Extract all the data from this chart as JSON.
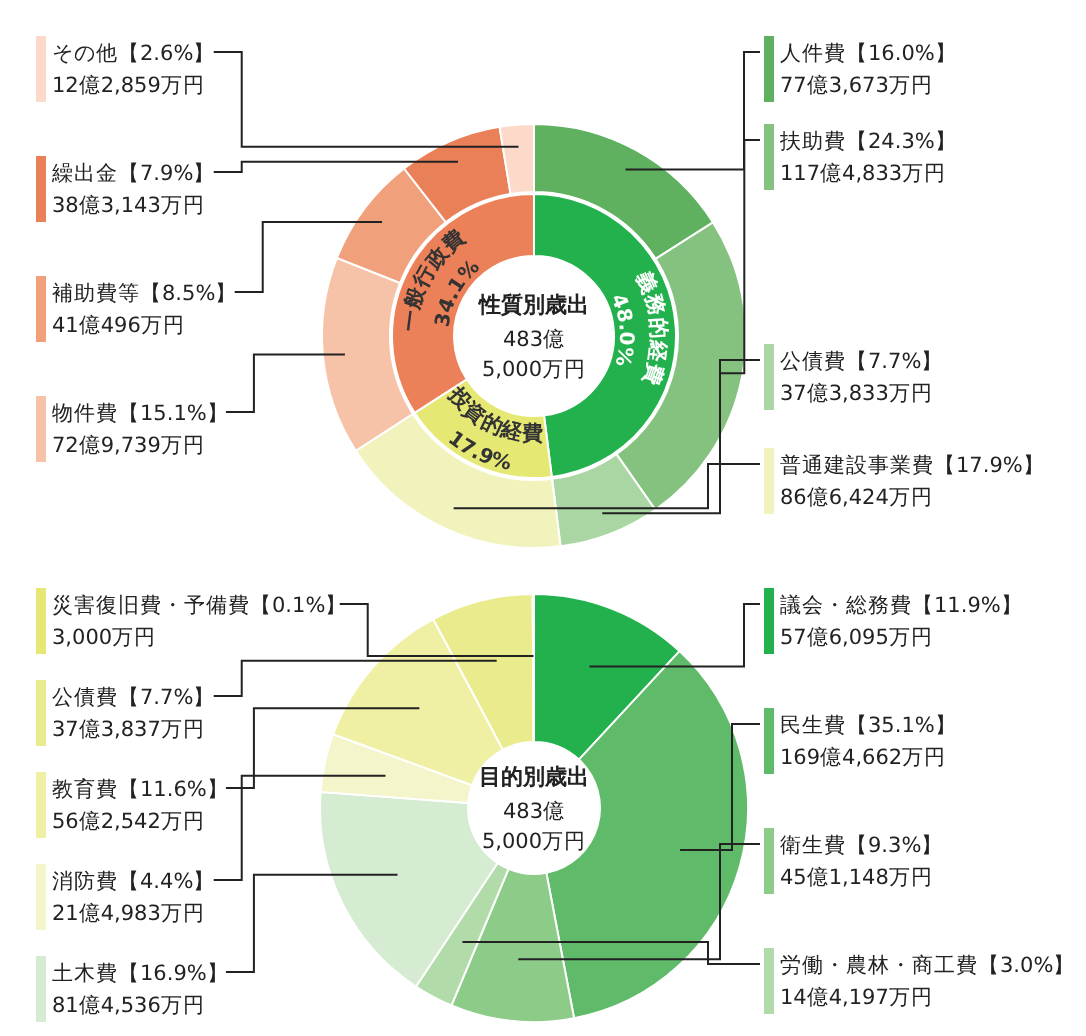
{
  "chart_data": [
    {
      "type": "donut",
      "categories": [
        "義務的経費",
        "投資的経費",
        "一般行政費"
      ],
      "values": [
        48.0,
        17.9,
        34.1
      ],
      "colors": [
        "#22b14c",
        "#e6e874",
        "#ec8058"
      ],
      "value_labels": [
        "48.0%",
        "17.9%",
        "34.1%"
      ]
    },
    {
      "type": "donut",
      "title": "性質別歳出",
      "subtitle": "483億\n5,000万円",
      "categories": [
        "人件費",
        "扶助費",
        "公債費",
        "普通建設事業費",
        "物件費",
        "補助費等",
        "繰出金",
        "その他"
      ],
      "values": [
        16.0,
        24.3,
        7.7,
        17.9,
        15.1,
        8.5,
        7.9,
        2.6
      ],
      "colors": [
        "#5fb160",
        "#86c27f",
        "#a9d6a2",
        "#f2f3bc",
        "#f7c3a8",
        "#f1a07c",
        "#ea8058",
        "#fcd9c8"
      ],
      "value_labels": [
        "【16.0%】\n77億3,673万円",
        "【24.3%】\n117億4,833万円",
        "【7.7%】\n37億3,833万円",
        "【17.9%】\n86億6,424万円",
        "【15.1%】\n72億9,739万円",
        "【8.5%】\n41億496万円",
        "【7.9%】\n38億3,143万円",
        "【2.6%】\n12億2,859万円"
      ]
    },
    {
      "type": "donut",
      "title": "目的別歳出",
      "subtitle": "483億\n5,000万円",
      "categories": [
        "議会・総務費",
        "民生費",
        "衛生費",
        "労働・農林・商工費",
        "土木費",
        "消防費",
        "教育費",
        "公債費",
        "災害復旧費・予備費"
      ],
      "values": [
        11.9,
        35.1,
        9.3,
        3.0,
        16.9,
        4.4,
        11.6,
        7.7,
        0.1
      ],
      "colors": [
        "#22b14c",
        "#5fbb69",
        "#8ccb88",
        "#b1dba9",
        "#d5ebd2",
        "#f4f5cb",
        "#eff0a4",
        "#eaeb8c",
        "#e6e873"
      ],
      "value_labels": [
        "【11.9%】\n57億6,095万円",
        "【35.1%】\n169億4,662万円",
        "【9.3%】\n45億1,148万円",
        "【3.0%】\n14億4,197万円",
        "【16.9%】\n81億4,536万円",
        "【4.4%】\n21億4,983万円",
        "【11.6%】\n56億2,542万円",
        "【7.7%】\n37億3,837万円",
        "【0.1%】\n3,000万円"
      ]
    }
  ]
}
